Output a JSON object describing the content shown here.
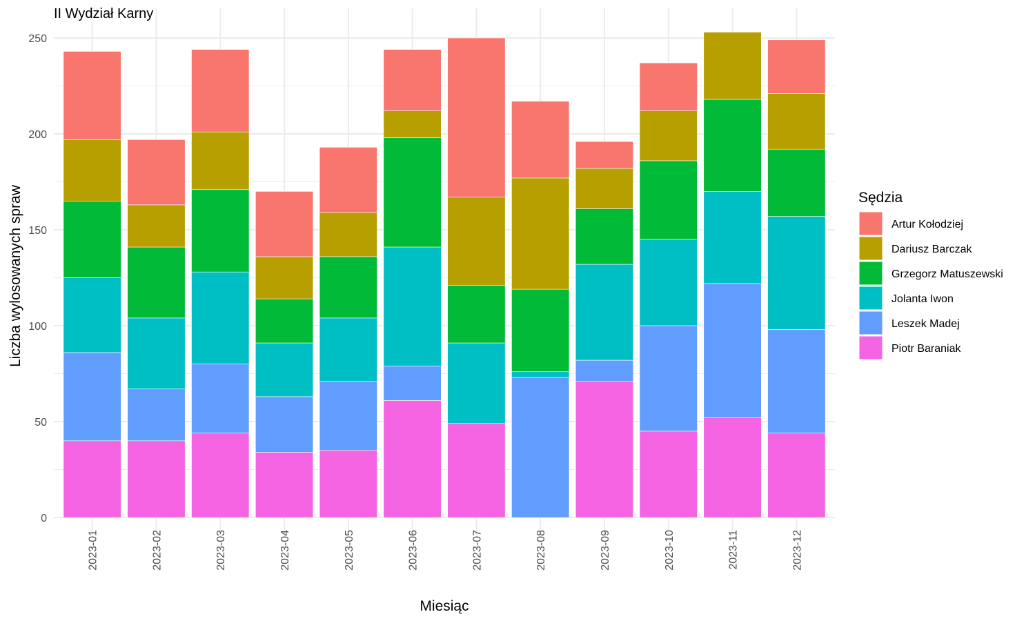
{
  "chart_data": {
    "type": "bar",
    "stacked": true,
    "title": "II Wydział Karny",
    "xlabel": "Miesiąc",
    "ylabel": "Liczba wylosowanych spraw",
    "ylim": [
      0,
      260
    ],
    "yticks": [
      0,
      50,
      100,
      150,
      200,
      250
    ],
    "grid": true,
    "legend": {
      "title": "Sędzia",
      "position": "right"
    },
    "categories": [
      "2023-01",
      "2023-02",
      "2023-03",
      "2023-04",
      "2023-05",
      "2023-06",
      "2023-07",
      "2023-08",
      "2023-09",
      "2023-10",
      "2023-11",
      "2023-12"
    ],
    "series": [
      {
        "name": "Piotr Baraniak",
        "color": "#F564E3",
        "values": [
          40,
          40,
          44,
          34,
          35,
          61,
          49,
          0,
          71,
          45,
          52,
          44
        ]
      },
      {
        "name": "Leszek Madej",
        "color": "#619CFF",
        "values": [
          46,
          27,
          36,
          29,
          36,
          18,
          0,
          73,
          11,
          55,
          70,
          54
        ]
      },
      {
        "name": "Jolanta Iwon",
        "color": "#00BFC4",
        "values": [
          39,
          37,
          48,
          28,
          33,
          62,
          42,
          3,
          50,
          45,
          48,
          59
        ]
      },
      {
        "name": "Grzegorz Matuszewski",
        "color": "#00BA38",
        "values": [
          40,
          37,
          43,
          23,
          32,
          57,
          30,
          43,
          29,
          41,
          48,
          35
        ]
      },
      {
        "name": "Dariusz Barczak",
        "color": "#B79F00",
        "values": [
          32,
          22,
          30,
          22,
          23,
          14,
          46,
          58,
          21,
          26,
          35,
          29
        ]
      },
      {
        "name": "Artur Kołodziej",
        "color": "#F8766D",
        "values": [
          46,
          34,
          43,
          34,
          34,
          32,
          83,
          40,
          14,
          25,
          0,
          28
        ]
      }
    ],
    "legend_order": [
      "Artur Kołodziej",
      "Dariusz Barczak",
      "Grzegorz Matuszewski",
      "Jolanta Iwon",
      "Leszek Madej",
      "Piotr Baraniak"
    ]
  }
}
